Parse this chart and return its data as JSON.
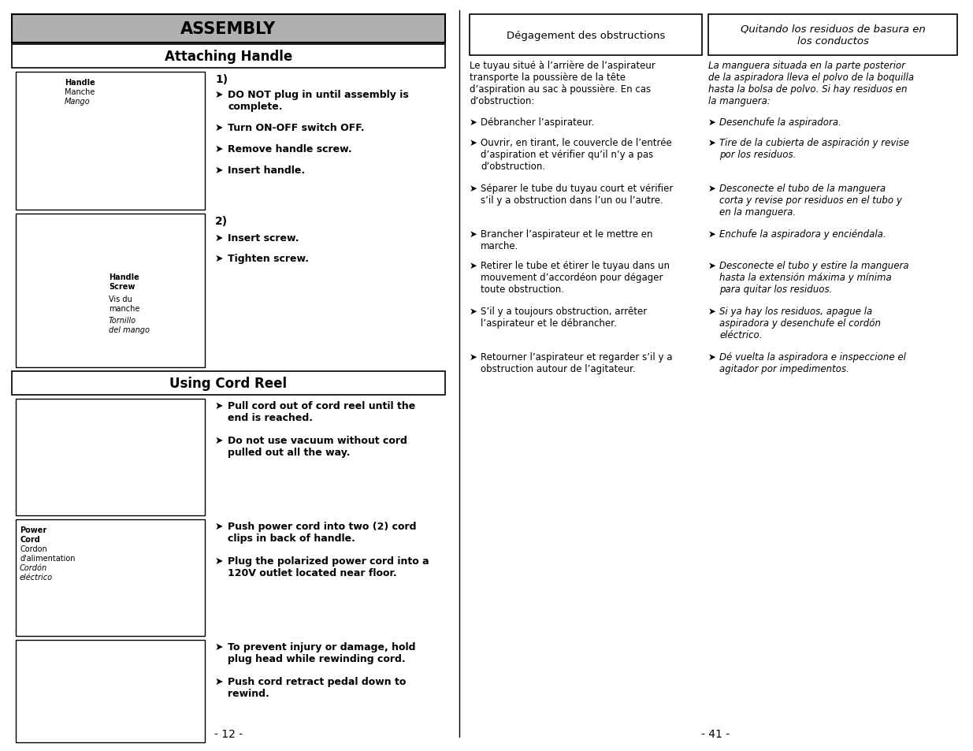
{
  "page_bg": "#ffffff",
  "assembly_header_bg": "#b0b0b0",
  "assembly_header_text": "ASSEMBLY",
  "attaching_header_text": "Attaching Handle",
  "cord_reel_header_text": "Using Cord Reel",
  "page_number_left": "- 12 -",
  "page_number_right": "- 41 -",
  "right_section": {
    "box1_title": "Dégagement des obstructions",
    "box2_title": "Quitando los residuos de basura en\nlos conductos",
    "french_intro": "Le tuyau situé à l’arrière de l’aspirateur\ntransporte la poussière de la tête\nd’aspiration au sac à poussière. En cas\nd’obstruction:",
    "spanish_intro": "La manguera situada en la parte posterior\nde la aspiradora lleva el polvo de la boquilla\nhasta la bolsa de polvo. Si hay residuos en\nla manguera:",
    "french_bullets": [
      "Débrancher l’aspirateur.",
      "Ouvrir, en tirant, le couvercle de l’entrée\nd’aspiration et vérifier qu’il n’y a pas\nd’obstruction.",
      "Séparer le tube du tuyau court et vérifier\ns’il y a obstruction dans l’un ou l’autre.",
      "Brancher l’aspirateur et le mettre en\nmarche.",
      "Retirer le tube et étirer le tuyau dans un\nmouvement d’accordéon pour dégager\ntoute obstruction.",
      "S’il y a toujours obstruction, arrêter\nl’aspirateur et le débrancher.",
      "Retourner l’aspirateur et regarder s’il y a\nobstruction autour de l’agitateur."
    ],
    "spanish_bullets": [
      "Desenchufe la aspiradora.",
      "Tire de la cubierta de aspiración y revise\npor los residuos.",
      "Desconecte el tubo de la manguera\ncorta y revise por residuos en el tubo y\nen la manguera.",
      "Enchufe la aspiradora y enciéndala.",
      "Desconecte el tubo y estire la manguera\nhasta la extensión máxima y mínima\npara quitar los residuos.",
      "Si ya hay los residuos, apague la\naspiradora y desenchufe el cordón\neléctrico.",
      "Dé vuelta la aspiradora e inspeccione el\nagitador por impedimentos."
    ],
    "fr_bullet_heights": [
      18,
      50,
      36,
      32,
      50,
      32,
      36
    ],
    "sp_bullet_heights": [
      18,
      32,
      50,
      18,
      50,
      50,
      32
    ]
  }
}
